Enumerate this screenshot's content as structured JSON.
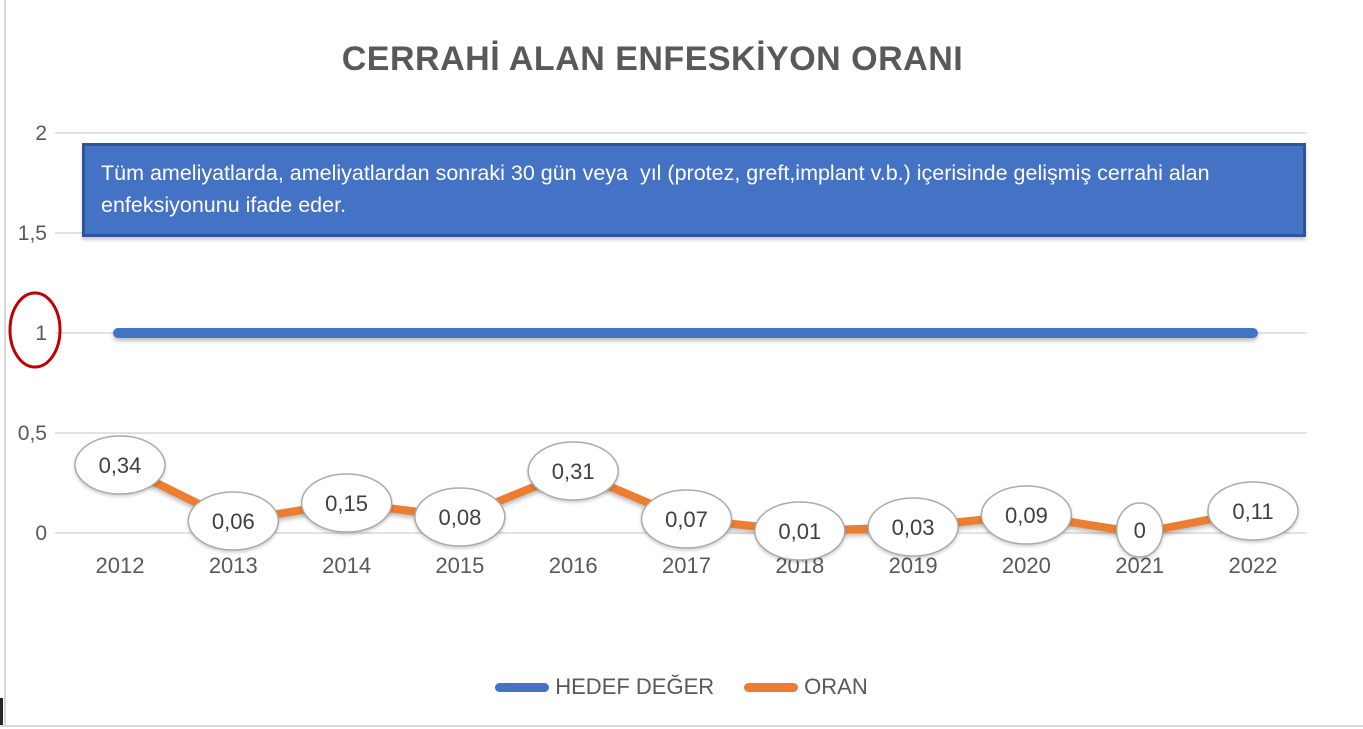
{
  "title": "CERRAHİ ALAN ENFESKİYON ORANI",
  "info_box": {
    "text": "Tüm ameliyatlarda, ameliyatlardan sonraki 30 gün veya  yıl (protez, greft,implant v.b.) içerisinde gelişmiş cerrahi alan enfeksiyonunu ifade eder.",
    "fill_color": "#4472C4",
    "border_color": "#2F5597",
    "text_color": "#FFFFFF"
  },
  "chart_data": {
    "type": "line",
    "title": "CERRAHİ ALAN ENFESKİYON ORANI",
    "categories": [
      "2012",
      "2013",
      "2014",
      "2015",
      "2016",
      "2017",
      "2018",
      "2019",
      "2020",
      "2021",
      "2022"
    ],
    "series": [
      {
        "name": "HEDEF DEĞER",
        "color": "#4472C4",
        "values": [
          1,
          1,
          1,
          1,
          1,
          1,
          1,
          1,
          1,
          1,
          1
        ]
      },
      {
        "name": "ORAN",
        "color": "#ED7D31",
        "values": [
          0.34,
          0.06,
          0.15,
          0.08,
          0.31,
          0.07,
          0.01,
          0.03,
          0.09,
          0,
          0.11
        ],
        "data_labels": [
          "0,34",
          "0,06",
          "0,15",
          "0,08",
          "0,31",
          "0,07",
          "0,01",
          "0,03",
          "0,09",
          "0",
          "0,11"
        ]
      }
    ],
    "y_axis": {
      "range": [
        0,
        2
      ],
      "ticks": [
        {
          "value": 0,
          "label": "0"
        },
        {
          "value": 0.5,
          "label": "0,5"
        },
        {
          "value": 1,
          "label": "1"
        },
        {
          "value": 1.5,
          "label": "1,5"
        },
        {
          "value": 2,
          "label": "2"
        }
      ]
    },
    "grid": true,
    "legend_position": "bottom",
    "decimal_separator": ",",
    "annotations": [
      {
        "type": "ellipse",
        "color": "#C00000",
        "around": "y-axis tick label 1"
      }
    ]
  },
  "legend": {
    "items": [
      {
        "label": "HEDEF DEĞER",
        "color": "#4472C4"
      },
      {
        "label": "ORAN",
        "color": "#ED7D31"
      }
    ]
  }
}
